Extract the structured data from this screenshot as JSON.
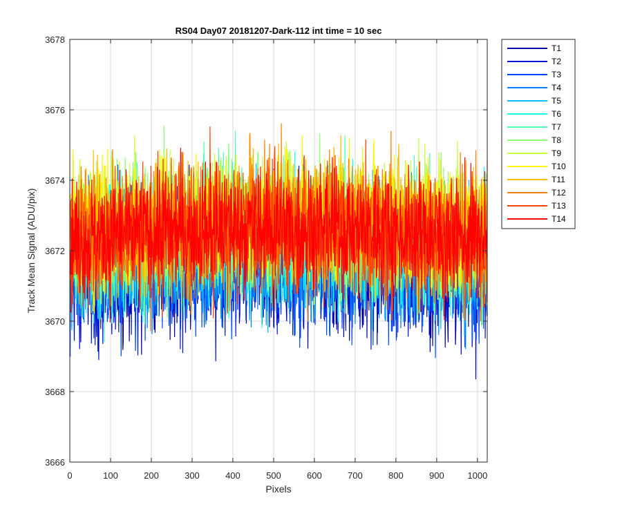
{
  "chart_data": {
    "type": "line",
    "title": "RS04 Day07 20181207-Dark-112 int time = 10 sec",
    "xlabel": "Pixels",
    "ylabel": "Track Mean Signal (ADU/pix)",
    "xlim": [
      0,
      1024
    ],
    "ylim": [
      3666,
      3678
    ],
    "xticks": [
      0,
      100,
      200,
      300,
      400,
      500,
      600,
      700,
      800,
      900,
      1000
    ],
    "yticks": [
      3666,
      3668,
      3670,
      3672,
      3674,
      3676,
      3678
    ],
    "grid": true,
    "legend_position": "outside-top-right",
    "x_points": 1024,
    "series": [
      {
        "name": "T1",
        "color": "#0000AA",
        "mean": 3671.2,
        "spread": 0.9
      },
      {
        "name": "T2",
        "color": "#0014D6",
        "mean": 3671.3,
        "spread": 0.9
      },
      {
        "name": "T3",
        "color": "#0046FF",
        "mean": 3671.4,
        "spread": 0.9
      },
      {
        "name": "T4",
        "color": "#0082FF",
        "mean": 3671.6,
        "spread": 0.9
      },
      {
        "name": "T5",
        "color": "#00BEFF",
        "mean": 3671.8,
        "spread": 0.9
      },
      {
        "name": "T6",
        "color": "#14FFEB",
        "mean": 3672.0,
        "spread": 0.9
      },
      {
        "name": "T7",
        "color": "#50FFAF",
        "mean": 3672.2,
        "spread": 0.9
      },
      {
        "name": "T8",
        "color": "#8CFF73",
        "mean": 3672.4,
        "spread": 0.9
      },
      {
        "name": "T9",
        "color": "#C8FF37",
        "mean": 3672.6,
        "spread": 0.9
      },
      {
        "name": "T10",
        "color": "#FFF500",
        "mean": 3672.6,
        "spread": 0.9
      },
      {
        "name": "T11",
        "color": "#FFB900",
        "mean": 3672.5,
        "spread": 0.9
      },
      {
        "name": "T12",
        "color": "#FF7D00",
        "mean": 3672.4,
        "spread": 0.9
      },
      {
        "name": "T13",
        "color": "#FF4100",
        "mean": 3672.3,
        "spread": 0.9
      },
      {
        "name": "T14",
        "color": "#FF0000",
        "mean": 3672.3,
        "spread": 0.85
      }
    ]
  }
}
